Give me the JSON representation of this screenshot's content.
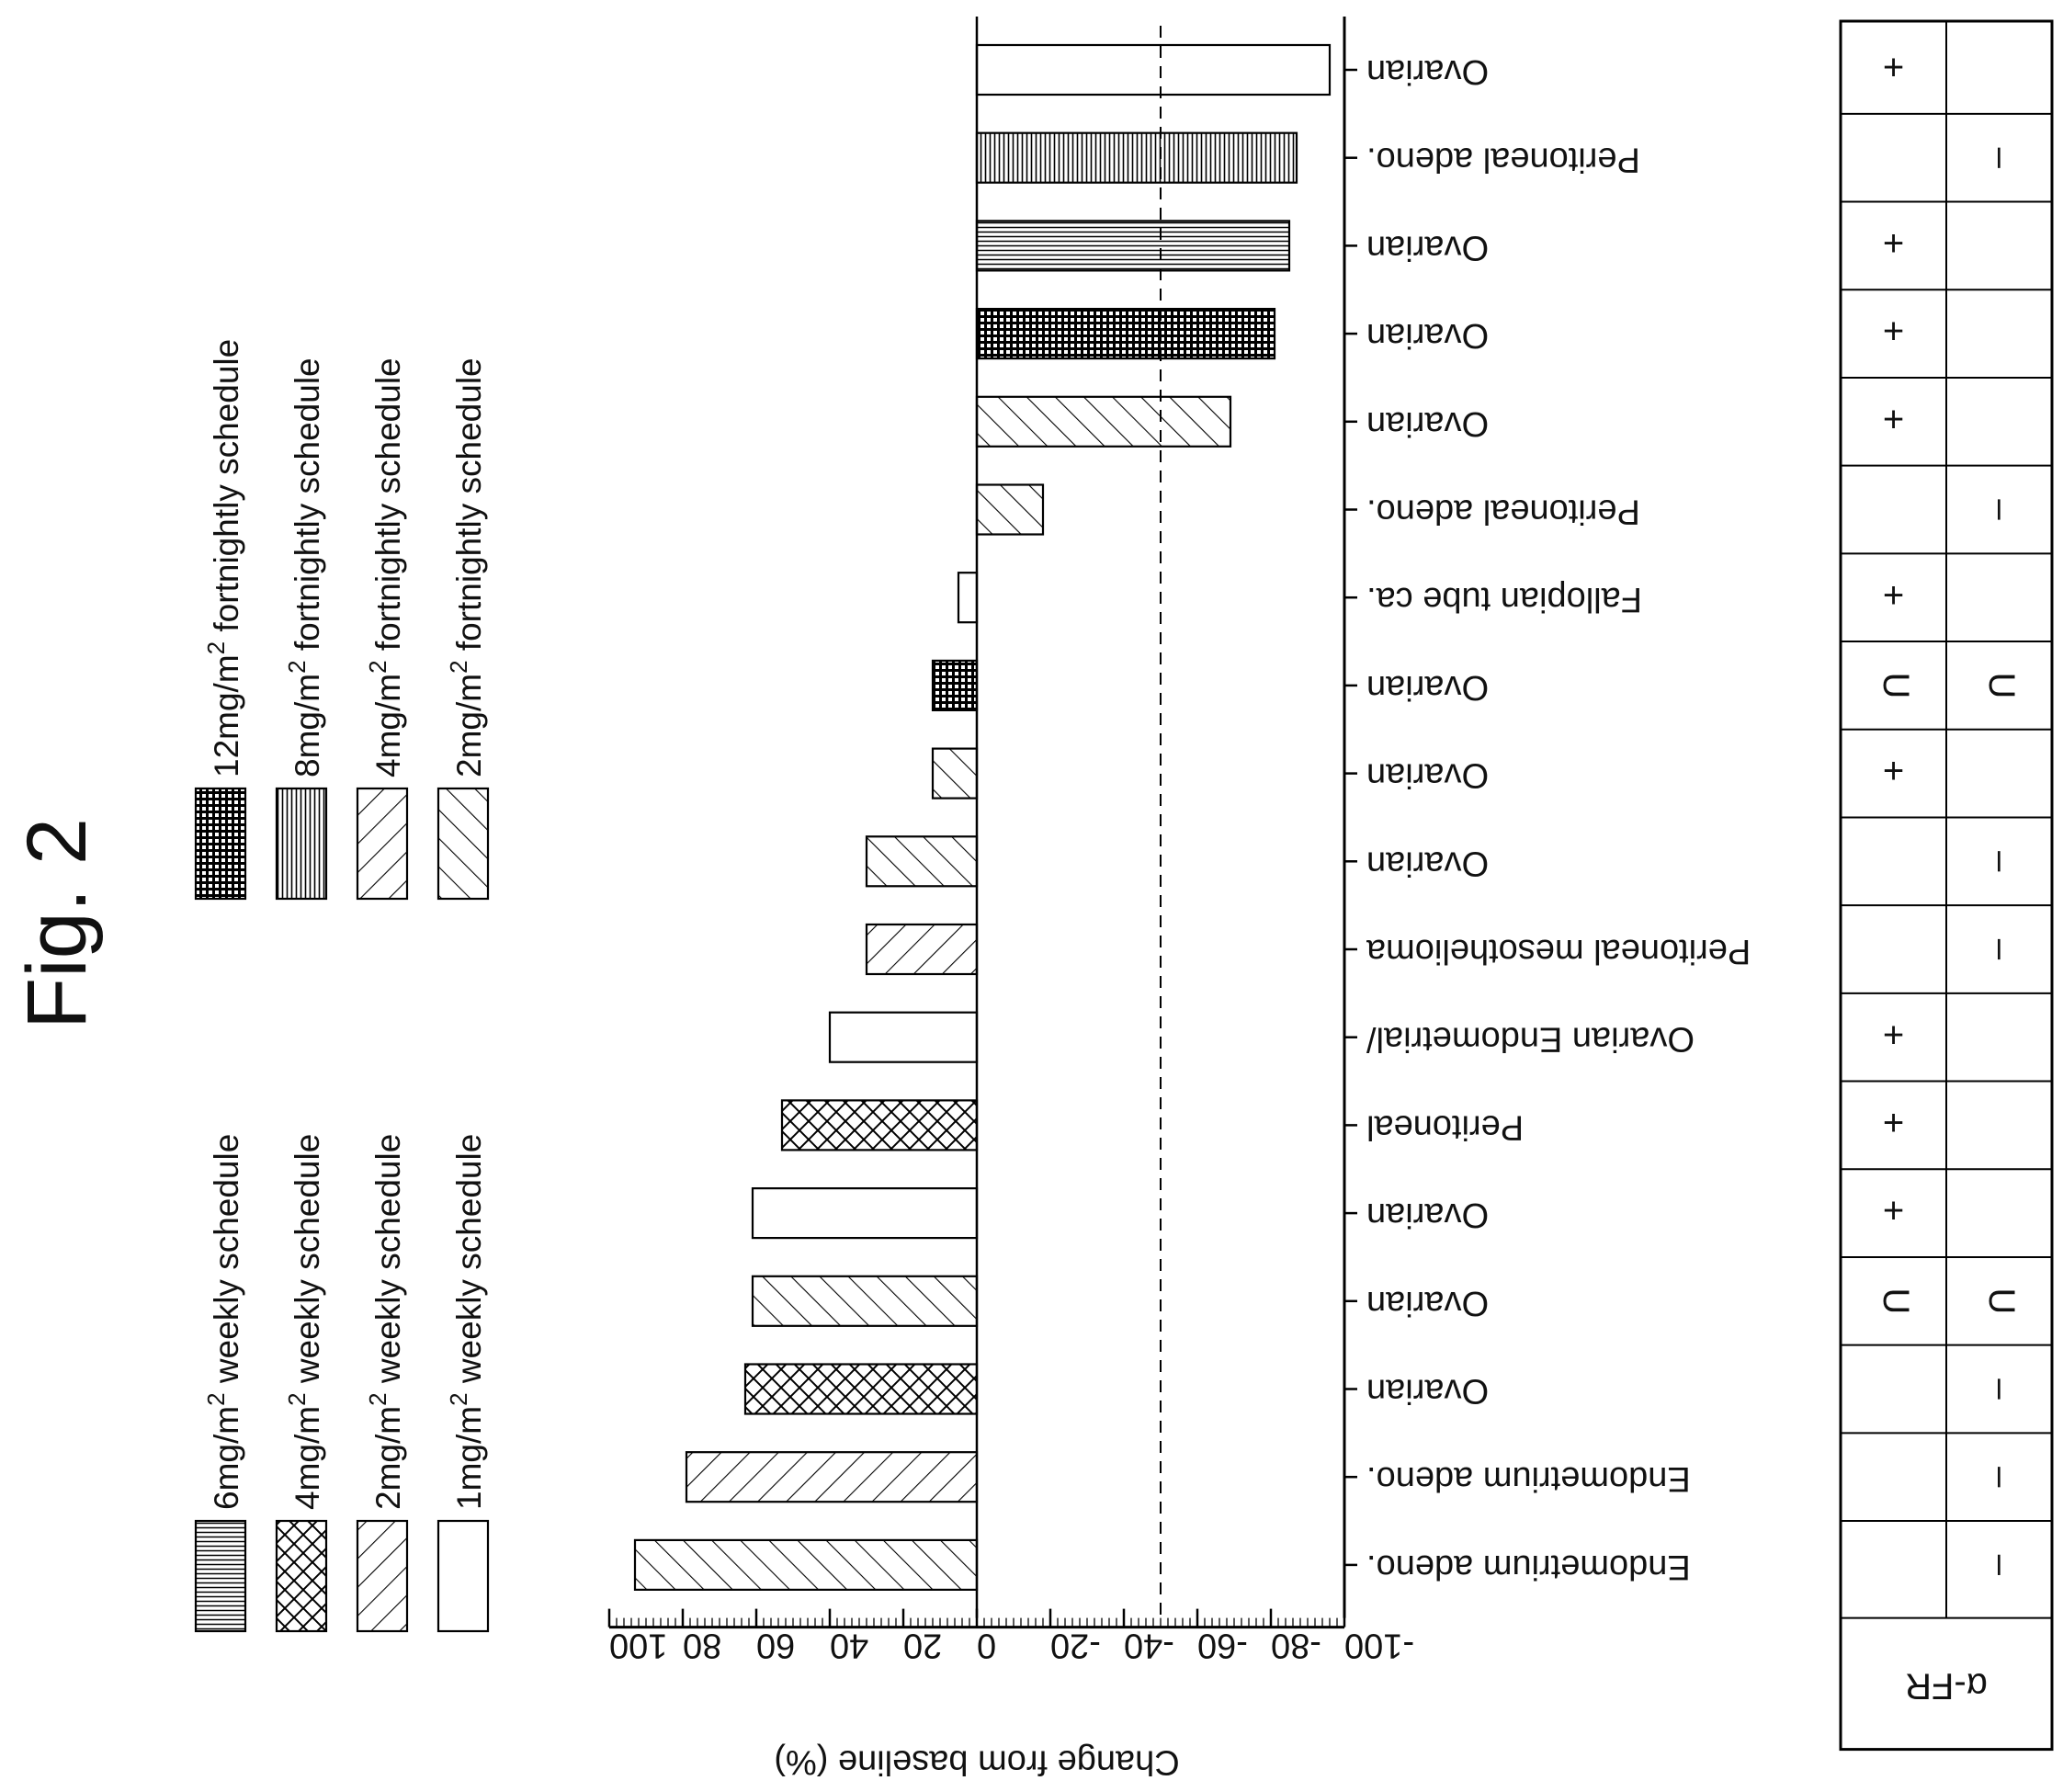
{
  "figure_label": "Fig. 2",
  "chart_data": {
    "type": "bar",
    "orientation": "horizontal",
    "ylabel": "Change from baseline (%)",
    "y_ticks": [
      "100",
      "80",
      "60",
      "40",
      "20",
      "0",
      "-20",
      "-40",
      "-60",
      "-80",
      "-100"
    ],
    "ylim": [
      100,
      -100
    ],
    "reference_line": -50,
    "categories": [
      "Endometrium adeno.",
      "Endometrium adeno.",
      "Ovarian",
      "Ovarian",
      "Ovarian",
      "Peritoneal",
      "Ovarian Endometrial/",
      "Peritoneal mesothelioma",
      "Ovarian",
      "Ovarian",
      "Ovarian",
      "Fallopian tube ca.",
      "Peritoneal adeno.",
      "Ovarian",
      "Ovarian",
      "Ovarian",
      "Peritoneal adeno.",
      "Ovarian"
    ],
    "values": [
      93,
      79,
      63,
      61,
      61,
      53,
      40,
      30,
      30,
      12,
      12,
      5,
      -18,
      -69,
      -81,
      -85,
      -87,
      -96
    ],
    "groups": [
      "2mg/m2 fortnightly schedule",
      "2mg/m2 weekly schedule",
      "4mg/m2 weekly schedule",
      "2mg/m2 fortnightly schedule",
      "1mg/m2 weekly schedule",
      "4mg/m2 weekly schedule",
      "1mg/m2 weekly schedule",
      "4mg/m2 fortnightly schedule",
      "2mg/m2 fortnightly schedule",
      "2mg/m2 fortnightly schedule",
      "12mg/m2 fortnightly schedule",
      "1mg/m2 weekly schedule",
      "2mg/m2 fortnightly schedule",
      "2mg/m2 fortnightly schedule",
      "12mg/m2 fortnightly schedule",
      "6mg/m2 weekly schedule",
      "8mg/m2 fortnightly schedule",
      "1mg/m2 weekly schedule"
    ],
    "legend_left": [
      {
        "label": "6mg/m",
        "sup": "2",
        "suffix": " weekly schedule",
        "pattern": "horizontal-lines"
      },
      {
        "label": "4mg/m",
        "sup": "2",
        "suffix": " weekly schedule",
        "pattern": "crosshatch"
      },
      {
        "label": "2mg/m",
        "sup": "2",
        "suffix": " weekly schedule",
        "pattern": "diagonal-wide"
      },
      {
        "label": "1mg/m",
        "sup": "2",
        "suffix": " weekly schedule",
        "pattern": "blank"
      }
    ],
    "legend_right": [
      {
        "label": "12mg/m",
        "sup": "2",
        "suffix": " fortnightly schedule",
        "pattern": "dense-grid"
      },
      {
        "label": "8mg/m",
        "sup": "2",
        "suffix": " fortnightly schedule",
        "pattern": "vertical-lines"
      },
      {
        "label": "4mg/m",
        "sup": "2",
        "suffix": " fortnightly schedule",
        "pattern": "diagonal-wide"
      },
      {
        "label": "2mg/m",
        "sup": "2",
        "suffix": " fortnightly schedule",
        "pattern": "diagonal-close"
      }
    ]
  },
  "table": {
    "header": "α-FR",
    "row_top": [
      "",
      "",
      "",
      "U",
      "+",
      "+",
      "+",
      "",
      "",
      "+",
      "U",
      "+",
      "",
      "+",
      "+",
      "+",
      "",
      "+"
    ],
    "row_bottom": [
      "–",
      "–",
      "–",
      "U",
      "",
      "",
      "",
      "–",
      "–",
      "",
      "U",
      "",
      "–",
      "",
      "",
      "",
      "–",
      ""
    ]
  }
}
